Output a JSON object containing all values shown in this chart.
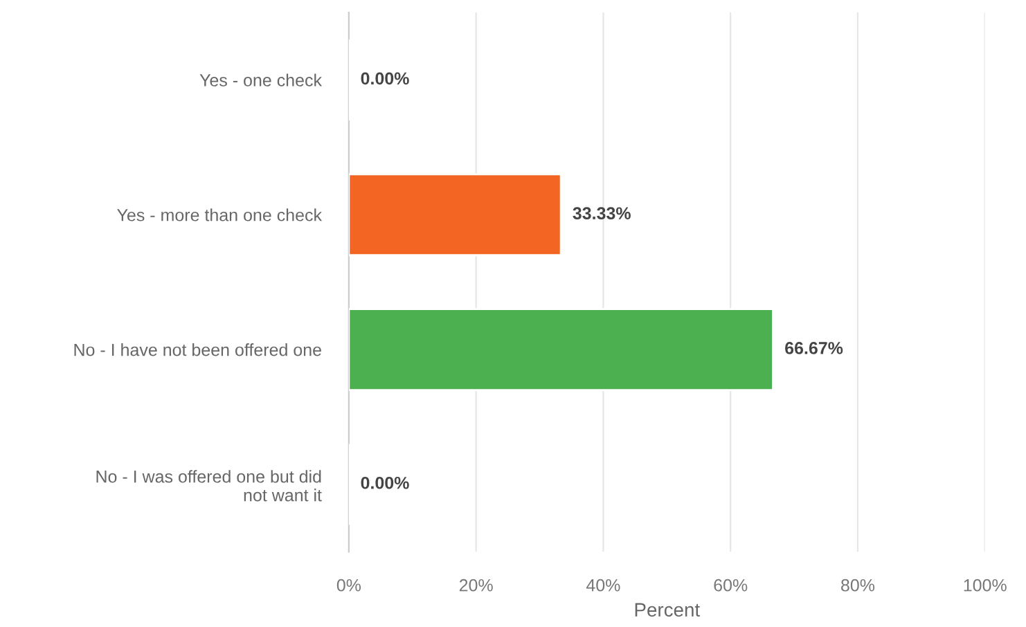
{
  "chart_data": {
    "type": "bar",
    "orientation": "horizontal",
    "xlabel": "Percent",
    "categories": [
      "Yes - one check",
      "Yes - more than one check",
      "No - I have not been offered one",
      "No - I was offered one but did\nnot want it"
    ],
    "values": [
      0,
      33.33,
      66.67,
      0
    ],
    "colors": [
      null,
      "#f26522",
      "#4caf50",
      null
    ],
    "value_labels": [
      "0.00%",
      "33.33%",
      "66.67%",
      "0.00%"
    ],
    "xlim": [
      0,
      100
    ],
    "xticks": [
      {
        "value": 0,
        "label": "0%"
      },
      {
        "value": 20,
        "label": "20%"
      },
      {
        "value": 40,
        "label": "40%"
      },
      {
        "value": 60,
        "label": "60%"
      },
      {
        "value": 80,
        "label": "80%"
      },
      {
        "value": 100,
        "label": "100%"
      }
    ],
    "grid": "x"
  }
}
